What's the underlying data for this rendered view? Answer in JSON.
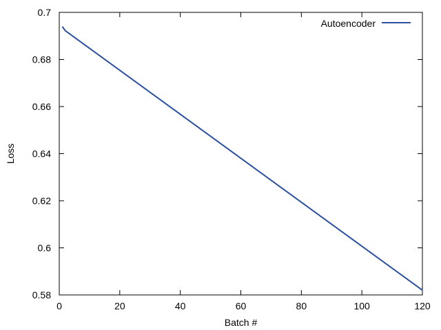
{
  "chart_data": {
    "type": "line",
    "title": "",
    "xlabel": "Batch #",
    "ylabel": "Loss",
    "xlim": [
      0,
      120
    ],
    "ylim": [
      0.58,
      0.7
    ],
    "xticks": [
      0,
      20,
      40,
      60,
      80,
      100,
      120
    ],
    "yticks": [
      0.58,
      0.6,
      0.62,
      0.64,
      0.66,
      0.68,
      0.7
    ],
    "xtick_labels": [
      "0",
      "20",
      "40",
      "60",
      "80",
      "100",
      "120"
    ],
    "ytick_labels": [
      "0.58",
      "0.6",
      "0.62",
      "0.64",
      "0.66",
      "0.68",
      "0.7"
    ],
    "grid": false,
    "legend_position": "top-right",
    "series": [
      {
        "name": "Autoencoder",
        "color": "#2a4f9f",
        "x": [
          1,
          2,
          120
        ],
        "y": [
          0.694,
          0.6922,
          0.582
        ]
      }
    ]
  }
}
